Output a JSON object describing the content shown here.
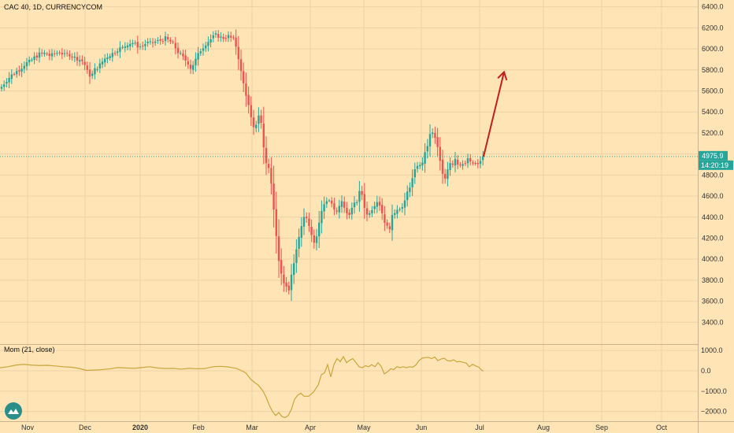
{
  "chart_data": [
    {
      "type": "candlestick",
      "title": "CAC 40, 1D, CURRENCYCOM",
      "ylim": [
        3200,
        6450
      ],
      "y_ticks": [
        3400,
        3600,
        3800,
        4000,
        4200,
        4400,
        4600,
        4800,
        5000,
        5200,
        5400,
        5600,
        5800,
        6000,
        6200,
        6400
      ],
      "y_tick_labels": [
        "3400.0",
        "3600.0",
        "3800.0",
        "4000.0",
        "4200.0",
        "4400.0",
        "4600.0",
        "4800.0",
        "5000.0",
        "5200.0",
        "5400.0",
        "5600.0",
        "5800.0",
        "6000.0",
        "6200.0",
        "6400.0"
      ],
      "x_labels": [
        "Nov",
        "Dec",
        "2020",
        "Feb",
        "Mar",
        "Apr",
        "May",
        "Jun",
        "Jul",
        "Aug",
        "Sep",
        "Oct"
      ],
      "last_price": 4975.9,
      "last_price_label": "4975.9",
      "countdown_label": "14:20:19",
      "series_path": [
        [
          0,
          5620
        ],
        [
          8,
          5700
        ],
        [
          16,
          5760
        ],
        [
          24,
          5800
        ],
        [
          32,
          5860
        ],
        [
          38,
          5880
        ],
        [
          44,
          5920
        ],
        [
          50,
          5950
        ],
        [
          58,
          5960
        ],
        [
          64,
          5930
        ],
        [
          70,
          5960
        ],
        [
          76,
          5970
        ],
        [
          82,
          5940
        ],
        [
          88,
          5950
        ],
        [
          94,
          5920
        ],
        [
          100,
          5900
        ],
        [
          106,
          5880
        ],
        [
          112,
          5760
        ],
        [
          116,
          5740
        ],
        [
          120,
          5800
        ],
        [
          126,
          5840
        ],
        [
          132,
          5900
        ],
        [
          138,
          5940
        ],
        [
          144,
          5960
        ],
        [
          150,
          6000
        ],
        [
          156,
          6010
        ],
        [
          162,
          6050
        ],
        [
          168,
          6060
        ],
        [
          174,
          6030
        ],
        [
          180,
          6020
        ],
        [
          186,
          6060
        ],
        [
          192,
          6050
        ],
        [
          198,
          6070
        ],
        [
          204,
          6080
        ],
        [
          210,
          6100
        ],
        [
          214,
          6080
        ],
        [
          218,
          6060
        ],
        [
          222,
          6020
        ],
        [
          226,
          5970
        ],
        [
          230,
          5940
        ],
        [
          234,
          5900
        ],
        [
          238,
          5880
        ],
        [
          242,
          5820
        ],
        [
          246,
          5860
        ],
        [
          250,
          5920
        ],
        [
          254,
          5980
        ],
        [
          258,
          6020
        ],
        [
          262,
          6060
        ],
        [
          266,
          6080
        ],
        [
          270,
          6110
        ],
        [
          274,
          6130
        ],
        [
          278,
          6120
        ],
        [
          282,
          6100
        ],
        [
          286,
          6110
        ],
        [
          290,
          6120
        ],
        [
          294,
          6100
        ],
        [
          298,
          6080
        ],
        [
          302,
          5950
        ],
        [
          306,
          5780
        ],
        [
          310,
          5640
        ],
        [
          314,
          5520
        ],
        [
          318,
          5360
        ],
        [
          322,
          5240
        ],
        [
          326,
          5300
        ],
        [
          330,
          5420
        ],
        [
          334,
          5100
        ],
        [
          338,
          4920
        ],
        [
          342,
          4850
        ],
        [
          346,
          4620
        ],
        [
          350,
          4300
        ],
        [
          354,
          4000
        ],
        [
          358,
          3820
        ],
        [
          362,
          3760
        ],
        [
          366,
          3660
        ],
        [
          370,
          3860
        ],
        [
          374,
          3980
        ],
        [
          378,
          4140
        ],
        [
          382,
          4300
        ],
        [
          386,
          4420
        ],
        [
          390,
          4380
        ],
        [
          394,
          4300
        ],
        [
          398,
          4160
        ],
        [
          402,
          4220
        ],
        [
          406,
          4380
        ],
        [
          410,
          4500
        ],
        [
          414,
          4560
        ],
        [
          418,
          4560
        ],
        [
          422,
          4520
        ],
        [
          426,
          4420
        ],
        [
          430,
          4480
        ],
        [
          434,
          4560
        ],
        [
          438,
          4460
        ],
        [
          442,
          4420
        ],
        [
          446,
          4470
        ],
        [
          450,
          4520
        ],
        [
          454,
          4560
        ],
        [
          458,
          4680
        ],
        [
          462,
          4520
        ],
        [
          466,
          4420
        ],
        [
          470,
          4460
        ],
        [
          474,
          4500
        ],
        [
          478,
          4560
        ],
        [
          482,
          4520
        ],
        [
          486,
          4420
        ],
        [
          490,
          4320
        ],
        [
          494,
          4280
        ],
        [
          498,
          4400
        ],
        [
          502,
          4460
        ],
        [
          506,
          4500
        ],
        [
          510,
          4480
        ],
        [
          514,
          4540
        ],
        [
          518,
          4660
        ],
        [
          522,
          4720
        ],
        [
          526,
          4820
        ],
        [
          530,
          4900
        ],
        [
          534,
          4880
        ],
        [
          538,
          4960
        ],
        [
          542,
          5060
        ],
        [
          546,
          5180
        ],
        [
          550,
          5200
        ],
        [
          554,
          5120
        ],
        [
          558,
          4960
        ],
        [
          562,
          4800
        ],
        [
          566,
          4760
        ],
        [
          570,
          4940
        ],
        [
          574,
          4900
        ],
        [
          578,
          4960
        ],
        [
          582,
          4900
        ],
        [
          586,
          4920
        ],
        [
          590,
          4880
        ],
        [
          594,
          4960
        ],
        [
          598,
          4900
        ],
        [
          602,
          4920
        ],
        [
          606,
          4880
        ],
        [
          610,
          4940
        ],
        [
          614,
          4975.9
        ]
      ],
      "trend_arrow": {
        "from": [
          614,
          4975.9
        ],
        "to": [
          640,
          5780
        ]
      }
    },
    {
      "type": "line",
      "title": "Mom (21, close)",
      "ylim": [
        -2400,
        1200
      ],
      "y_ticks": [
        1000,
        0,
        -1000,
        -2000
      ],
      "y_tick_labels": [
        "1000.0",
        "0.0",
        "−1000.0",
        "−2000.0"
      ],
      "series_path": [
        [
          0,
          150
        ],
        [
          10,
          200
        ],
        [
          20,
          280
        ],
        [
          30,
          320
        ],
        [
          40,
          280
        ],
        [
          50,
          260
        ],
        [
          60,
          270
        ],
        [
          70,
          240
        ],
        [
          80,
          200
        ],
        [
          90,
          180
        ],
        [
          100,
          120
        ],
        [
          110,
          20
        ],
        [
          120,
          40
        ],
        [
          130,
          60
        ],
        [
          140,
          100
        ],
        [
          150,
          160
        ],
        [
          160,
          140
        ],
        [
          170,
          120
        ],
        [
          180,
          160
        ],
        [
          190,
          200
        ],
        [
          200,
          140
        ],
        [
          210,
          110
        ],
        [
          220,
          120
        ],
        [
          230,
          80
        ],
        [
          240,
          120
        ],
        [
          250,
          100
        ],
        [
          260,
          110
        ],
        [
          270,
          200
        ],
        [
          280,
          220
        ],
        [
          290,
          190
        ],
        [
          300,
          120
        ],
        [
          306,
          20
        ],
        [
          312,
          -100
        ],
        [
          318,
          -400
        ],
        [
          324,
          -600
        ],
        [
          328,
          -700
        ],
        [
          334,
          -1000
        ],
        [
          338,
          -1300
        ],
        [
          342,
          -1700
        ],
        [
          346,
          -2000
        ],
        [
          350,
          -2200
        ],
        [
          354,
          -2050
        ],
        [
          358,
          -2250
        ],
        [
          362,
          -2300
        ],
        [
          366,
          -2200
        ],
        [
          370,
          -1900
        ],
        [
          374,
          -1400
        ],
        [
          378,
          -1200
        ],
        [
          382,
          -1100
        ],
        [
          386,
          -1250
        ],
        [
          392,
          -1250
        ],
        [
          398,
          -1050
        ],
        [
          404,
          -700
        ],
        [
          408,
          -200
        ],
        [
          412,
          -100
        ],
        [
          416,
          300
        ],
        [
          420,
          -300
        ],
        [
          424,
          300
        ],
        [
          428,
          600
        ],
        [
          432,
          450
        ],
        [
          436,
          700
        ],
        [
          440,
          400
        ],
        [
          444,
          520
        ],
        [
          448,
          600
        ],
        [
          452,
          400
        ],
        [
          456,
          200
        ],
        [
          460,
          150
        ],
        [
          464,
          250
        ],
        [
          468,
          200
        ],
        [
          472,
          300
        ],
        [
          476,
          200
        ],
        [
          480,
          400
        ],
        [
          484,
          220
        ],
        [
          488,
          -150
        ],
        [
          492,
          -50
        ],
        [
          496,
          100
        ],
        [
          500,
          60
        ],
        [
          504,
          200
        ],
        [
          508,
          160
        ],
        [
          512,
          200
        ],
        [
          516,
          150
        ],
        [
          520,
          200
        ],
        [
          524,
          180
        ],
        [
          528,
          280
        ],
        [
          532,
          500
        ],
        [
          536,
          620
        ],
        [
          540,
          650
        ],
        [
          544,
          660
        ],
        [
          548,
          600
        ],
        [
          552,
          680
        ],
        [
          556,
          500
        ],
        [
          560,
          580
        ],
        [
          564,
          620
        ],
        [
          568,
          500
        ],
        [
          572,
          480
        ],
        [
          576,
          540
        ],
        [
          580,
          440
        ],
        [
          584,
          460
        ],
        [
          588,
          420
        ],
        [
          592,
          380
        ],
        [
          596,
          200
        ],
        [
          600,
          320
        ],
        [
          604,
          240
        ],
        [
          608,
          180
        ],
        [
          612,
          20
        ],
        [
          614,
          0
        ]
      ]
    }
  ],
  "colors": {
    "background": "#ffe4b5",
    "grid": "#ecd2a6",
    "up": "#26a69a",
    "down": "#ef5350",
    "momentum": "#c8a63c",
    "arrow": "#c0201c",
    "price_tag": "#26a69a",
    "axis_text": "#333333"
  },
  "logo_icon": "tradingview-cloud-icon"
}
